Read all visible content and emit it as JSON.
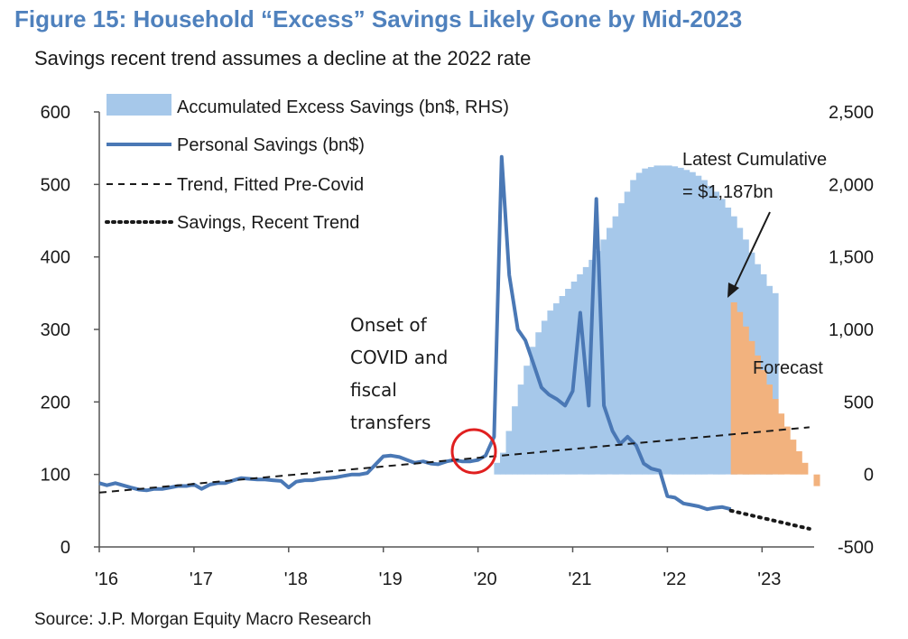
{
  "title": "Figure 15: Household “Excess” Savings Likely Gone by Mid-2023",
  "subtitle": "Savings recent trend assumes a decline at the 2022 rate",
  "source": "Source: J.P. Morgan Equity Macro Research",
  "colors": {
    "title": "#4f81bd",
    "excess_bar": "#a6c8ea",
    "forecast_bar": "#f2b27e",
    "personal_line": "#4a78b5",
    "circle": "#e02020"
  },
  "chart_data": {
    "type": "line",
    "x_ticks": [
      "'16",
      "'17",
      "'18",
      "'19",
      "'20",
      "'21",
      "'22",
      "'23"
    ],
    "y_left": {
      "ticks": [
        "0",
        "100",
        "200",
        "300",
        "400",
        "500",
        "600"
      ],
      "range": [
        0,
        600
      ]
    },
    "y_right": {
      "ticks": [
        "-500",
        "0",
        "500",
        "1,000",
        "1,500",
        "2,000",
        "2,500"
      ],
      "range": [
        -500,
        2500
      ]
    },
    "legend": [
      "Accumulated Excess Savings (bn$, RHS)",
      "Personal Savings (bn$)",
      "Trend, Fitted Pre-Covid",
      "Savings, Recent Trend"
    ],
    "series": [
      {
        "name": "Personal Savings (bn$)",
        "axis": "left",
        "points": [
          [
            2016.0,
            88
          ],
          [
            2016.08,
            85
          ],
          [
            2016.17,
            88
          ],
          [
            2016.25,
            85
          ],
          [
            2016.33,
            82
          ],
          [
            2016.42,
            79
          ],
          [
            2016.5,
            78
          ],
          [
            2016.58,
            80
          ],
          [
            2016.67,
            80
          ],
          [
            2016.75,
            82
          ],
          [
            2016.83,
            84
          ],
          [
            2016.92,
            84
          ],
          [
            2017.0,
            86
          ],
          [
            2017.08,
            80
          ],
          [
            2017.17,
            86
          ],
          [
            2017.25,
            88
          ],
          [
            2017.33,
            88
          ],
          [
            2017.42,
            92
          ],
          [
            2017.5,
            95
          ],
          [
            2017.58,
            94
          ],
          [
            2017.67,
            93
          ],
          [
            2017.75,
            93
          ],
          [
            2017.83,
            92
          ],
          [
            2017.92,
            91
          ],
          [
            2018.0,
            82
          ],
          [
            2018.08,
            90
          ],
          [
            2018.17,
            92
          ],
          [
            2018.25,
            92
          ],
          [
            2018.33,
            94
          ],
          [
            2018.42,
            95
          ],
          [
            2018.5,
            96
          ],
          [
            2018.58,
            98
          ],
          [
            2018.67,
            100
          ],
          [
            2018.75,
            100
          ],
          [
            2018.83,
            102
          ],
          [
            2019.0,
            125
          ],
          [
            2019.08,
            126
          ],
          [
            2019.17,
            124
          ],
          [
            2019.25,
            120
          ],
          [
            2019.33,
            116
          ],
          [
            2019.42,
            118
          ],
          [
            2019.5,
            115
          ],
          [
            2019.58,
            114
          ],
          [
            2019.67,
            118
          ],
          [
            2019.75,
            120
          ],
          [
            2019.83,
            118
          ],
          [
            2019.92,
            118
          ],
          [
            2020.0,
            120
          ],
          [
            2020.08,
            126
          ],
          [
            2020.17,
            152
          ],
          [
            2020.25,
            538
          ],
          [
            2020.33,
            375
          ],
          [
            2020.42,
            300
          ],
          [
            2020.5,
            285
          ],
          [
            2020.58,
            255
          ],
          [
            2020.67,
            220
          ],
          [
            2020.75,
            210
          ],
          [
            2020.83,
            204
          ],
          [
            2020.92,
            195
          ],
          [
            2021.0,
            215
          ],
          [
            2021.08,
            323
          ],
          [
            2021.17,
            195
          ],
          [
            2021.25,
            480
          ],
          [
            2021.33,
            195
          ],
          [
            2021.42,
            160
          ],
          [
            2021.5,
            142
          ],
          [
            2021.58,
            152
          ],
          [
            2021.67,
            140
          ],
          [
            2021.75,
            115
          ],
          [
            2021.83,
            108
          ],
          [
            2021.92,
            105
          ],
          [
            2022.0,
            70
          ],
          [
            2022.08,
            68
          ],
          [
            2022.17,
            60
          ],
          [
            2022.25,
            58
          ],
          [
            2022.33,
            56
          ],
          [
            2022.42,
            52
          ],
          [
            2022.5,
            54
          ],
          [
            2022.58,
            55
          ],
          [
            2022.67,
            52
          ]
        ]
      },
      {
        "name": "Trend, Fitted Pre-Covid",
        "axis": "left",
        "points": [
          [
            2016.0,
            75
          ],
          [
            2023.5,
            165
          ]
        ]
      },
      {
        "name": "Savings, Recent Trend",
        "axis": "left",
        "points": [
          [
            2022.67,
            50
          ],
          [
            2023.5,
            25
          ]
        ]
      },
      {
        "name": "Accumulated Excess Savings (bn$, RHS)",
        "axis": "right",
        "type": "bar",
        "x_start": 2020.17,
        "step": 0.0625,
        "values": [
          80,
          150,
          300,
          470,
          620,
          750,
          880,
          980,
          1060,
          1130,
          1180,
          1230,
          1280,
          1330,
          1380,
          1430,
          1480,
          1540,
          1620,
          1700,
          1780,
          1870,
          1950,
          2030,
          2080,
          2110,
          2120,
          2130,
          2130,
          2130,
          2125,
          2115,
          2100,
          2085,
          2060,
          2030,
          1990,
          1950,
          1900,
          1840,
          1780,
          1700,
          1620,
          1530,
          1450,
          1380,
          1300,
          1250
        ]
      },
      {
        "name": "Forecast",
        "axis": "right",
        "type": "bar",
        "x_start": 2022.67,
        "step": 0.0625,
        "values": [
          1187,
          1120,
          1020,
          920,
          820,
          720,
          620,
          520,
          420,
          330,
          240,
          160,
          80,
          0,
          -80
        ]
      }
    ],
    "annotations": {
      "onset": [
        "Onset of",
        "COVID and",
        "fiscal",
        "transfers"
      ],
      "latest": [
        "Latest Cumulative",
        "= $1,187bn"
      ],
      "forecast": "Forecast"
    }
  }
}
